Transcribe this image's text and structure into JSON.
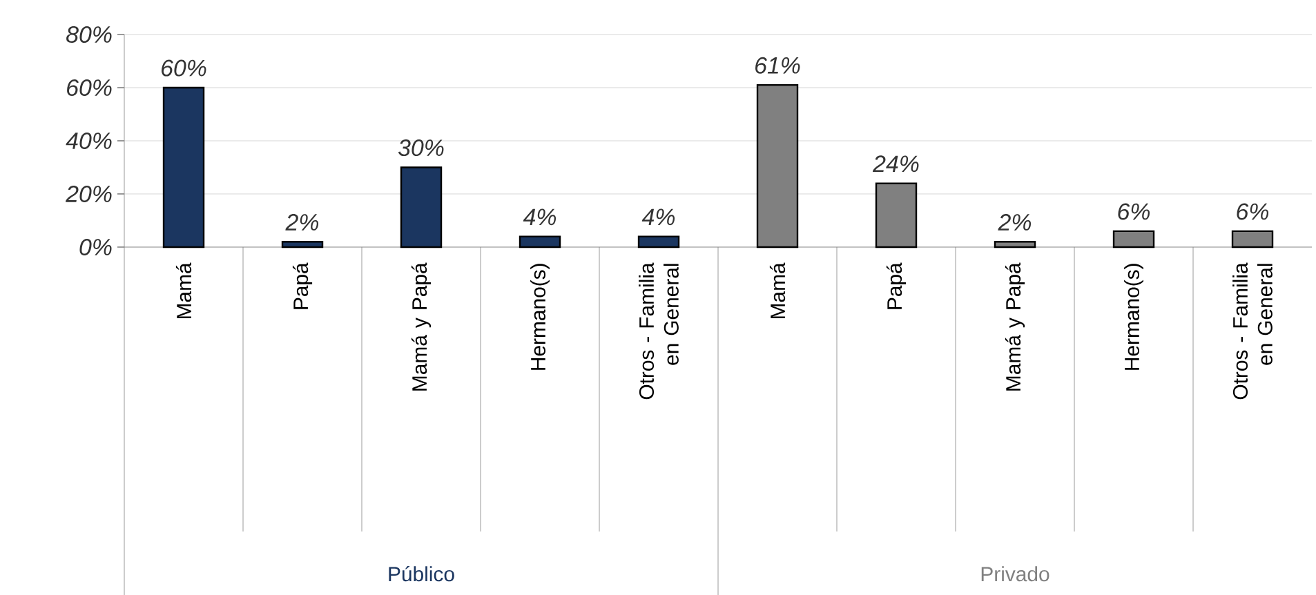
{
  "chart_data": {
    "type": "bar",
    "categories": [
      "Mamá",
      "Papá",
      "Mamá  y  Papá",
      "Hermano(s)",
      "Otros  -  Familia en  General",
      "Mamá",
      "Papá",
      "Mamá  y  Papá",
      "Hermano(s)",
      "Otros  -  Familia en  General"
    ],
    "series": [
      {
        "name": "Público",
        "color": "#1b3660",
        "values": [
          60,
          2,
          30,
          4,
          4,
          null,
          null,
          null,
          null,
          null
        ],
        "value_labels": [
          "60%",
          "2%",
          "30%",
          "4%",
          "4%",
          null,
          null,
          null,
          null,
          null
        ]
      },
      {
        "name": "Privado",
        "color": "#808080",
        "values": [
          null,
          null,
          null,
          null,
          null,
          61,
          24,
          2,
          6,
          6
        ],
        "value_labels": [
          null,
          null,
          null,
          null,
          null,
          "61%",
          "24%",
          "2%",
          "6%",
          "6%"
        ]
      }
    ],
    "ylim": [
      0,
      80
    ],
    "yticks": [
      {
        "value": 0,
        "label": "0%"
      },
      {
        "value": 20,
        "label": "20%"
      },
      {
        "value": 40,
        "label": "40%"
      },
      {
        "value": 60,
        "label": "60%"
      },
      {
        "value": 80,
        "label": "80%"
      }
    ],
    "grid": "y"
  }
}
